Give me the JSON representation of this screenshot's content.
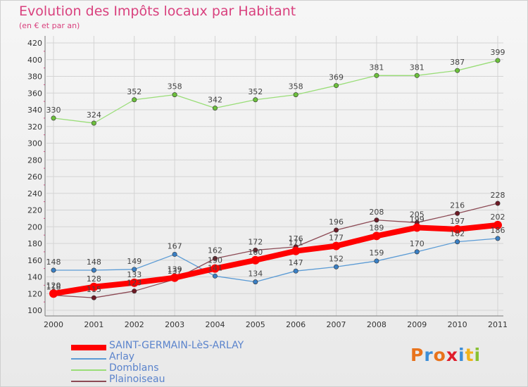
{
  "title": "Evolution des Impôts locaux par Habitant",
  "subtitle": "(en € et par an)",
  "logo": {
    "text": "Proxiti",
    "letter_colors": [
      "#e8731c",
      "#3c8ed8",
      "#e8731c",
      "#e01e2c",
      "#3c8ed8",
      "#f0b31c",
      "#88c133"
    ]
  },
  "chart_data": {
    "type": "line",
    "title": "Evolution des Impôts locaux par Habitant",
    "subtitle": "(en € et par an)",
    "xlabel": "",
    "ylabel": "",
    "x": [
      "2000",
      "2001",
      "2002",
      "2003",
      "2004",
      "2005",
      "2006",
      "2007",
      "2008",
      "2009",
      "2010",
      "2011"
    ],
    "ylim": [
      100,
      420
    ],
    "yticks": [
      100,
      120,
      140,
      160,
      180,
      200,
      220,
      240,
      260,
      280,
      300,
      320,
      340,
      360,
      380,
      400,
      420
    ],
    "grid": true,
    "legend_position": "bottom-left",
    "series": [
      {
        "name": "SAINT-GERMAIN-LèS-ARLAY",
        "color": "#ff0000",
        "emphasis": "thick",
        "values": [
          120,
          128,
          133,
          139,
          150,
          160,
          171,
          177,
          189,
          199,
          197,
          202
        ],
        "labels": [
          "120",
          "128",
          "133",
          "139",
          "150",
          "160",
          "171",
          "177",
          "189",
          "199",
          "197",
          "202"
        ]
      },
      {
        "name": "Arlay",
        "color": "#5b9bd5",
        "point_color": "#3a7fc4",
        "values": [
          148,
          148,
          149,
          167,
          141,
          134,
          147,
          152,
          159,
          170,
          182,
          186
        ],
        "labels": [
          "148",
          "148",
          "149",
          "167",
          "141",
          "134",
          "147",
          "152",
          "159",
          "170",
          "182",
          "186"
        ]
      },
      {
        "name": "Domblans",
        "color": "#99dd77",
        "point_color": "#6cc03c",
        "values": [
          330,
          324,
          352,
          358,
          342,
          352,
          358,
          369,
          381,
          381,
          387,
          399
        ],
        "labels": [
          "330",
          "324",
          "352",
          "358",
          "342",
          "352",
          "358",
          "369",
          "381",
          "381",
          "387",
          "399"
        ]
      },
      {
        "name": "Plainoiseau",
        "color": "#8c4a55",
        "point_color": "#6e1a25",
        "values": [
          118,
          115,
          123,
          137,
          162,
          172,
          176,
          196,
          208,
          205,
          216,
          228
        ],
        "labels": [
          "118",
          "115",
          "123",
          "137",
          "162",
          "172",
          "176",
          "196",
          "208",
          "205",
          "216",
          "228"
        ]
      }
    ]
  }
}
